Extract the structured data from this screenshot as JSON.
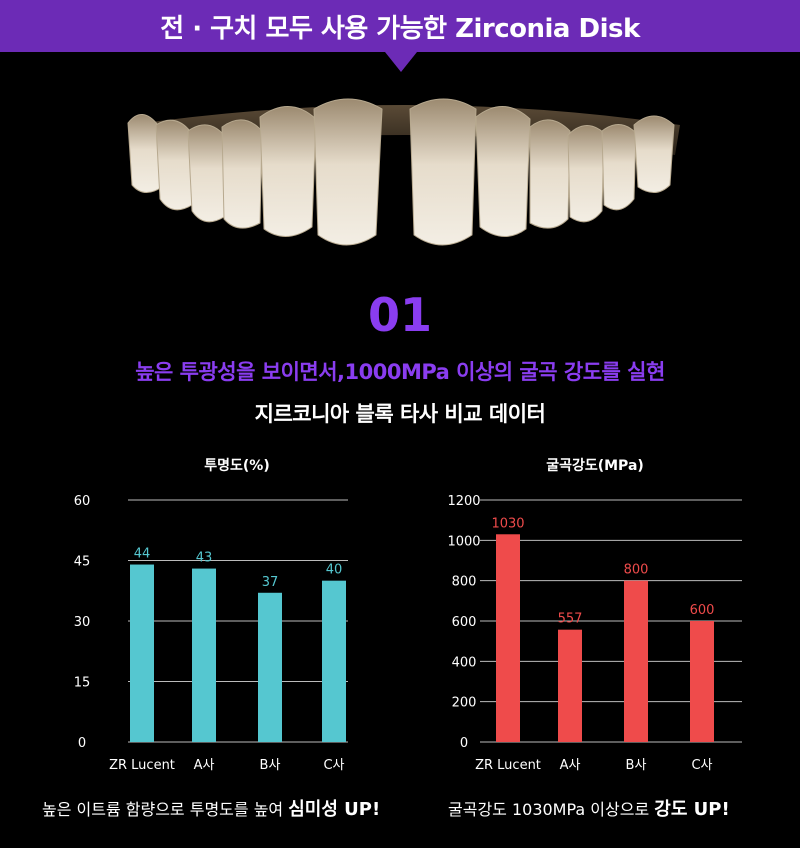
{
  "header": {
    "title": "전 · 구치 모두 사용 가능한 Zirconia Disk"
  },
  "section": {
    "number": "01",
    "headline": "높은 투광성을 보이면서,1000MPa 이상의 굴곡 강도를 실현",
    "subtitle": "지르코니아 블록 타사 비교 데이터"
  },
  "colors": {
    "accent": "#8a3df0",
    "banner": "#6c2bb6",
    "translucency": "#55c7d0",
    "strength": "#ef4b4b"
  },
  "chart_data": [
    {
      "type": "bar",
      "title": "투명도(%)",
      "categories": [
        "ZR Lucent",
        "A사",
        "B사",
        "C사"
      ],
      "values": [
        44,
        43,
        37,
        40
      ],
      "yticks": [
        0,
        15,
        30,
        45,
        60
      ],
      "ylim": [
        0,
        60
      ],
      "grid": true
    },
    {
      "type": "bar",
      "title": "굴곡강도(MPa)",
      "categories": [
        "ZR Lucent",
        "A사",
        "B사",
        "C사"
      ],
      "values": [
        1030,
        557,
        800,
        600
      ],
      "yticks": [
        0,
        200,
        400,
        600,
        800,
        1000,
        1200
      ],
      "ylim": [
        0,
        1200
      ],
      "grid": true
    }
  ],
  "captions": {
    "left_prefix": "높은 이트륨 함량으로 투명도를 높여 ",
    "left_bold": "심미성 UP!",
    "right_prefix": "굴곡강도 1030MPa 이상으로 ",
    "right_bold": "강도 UP!"
  }
}
